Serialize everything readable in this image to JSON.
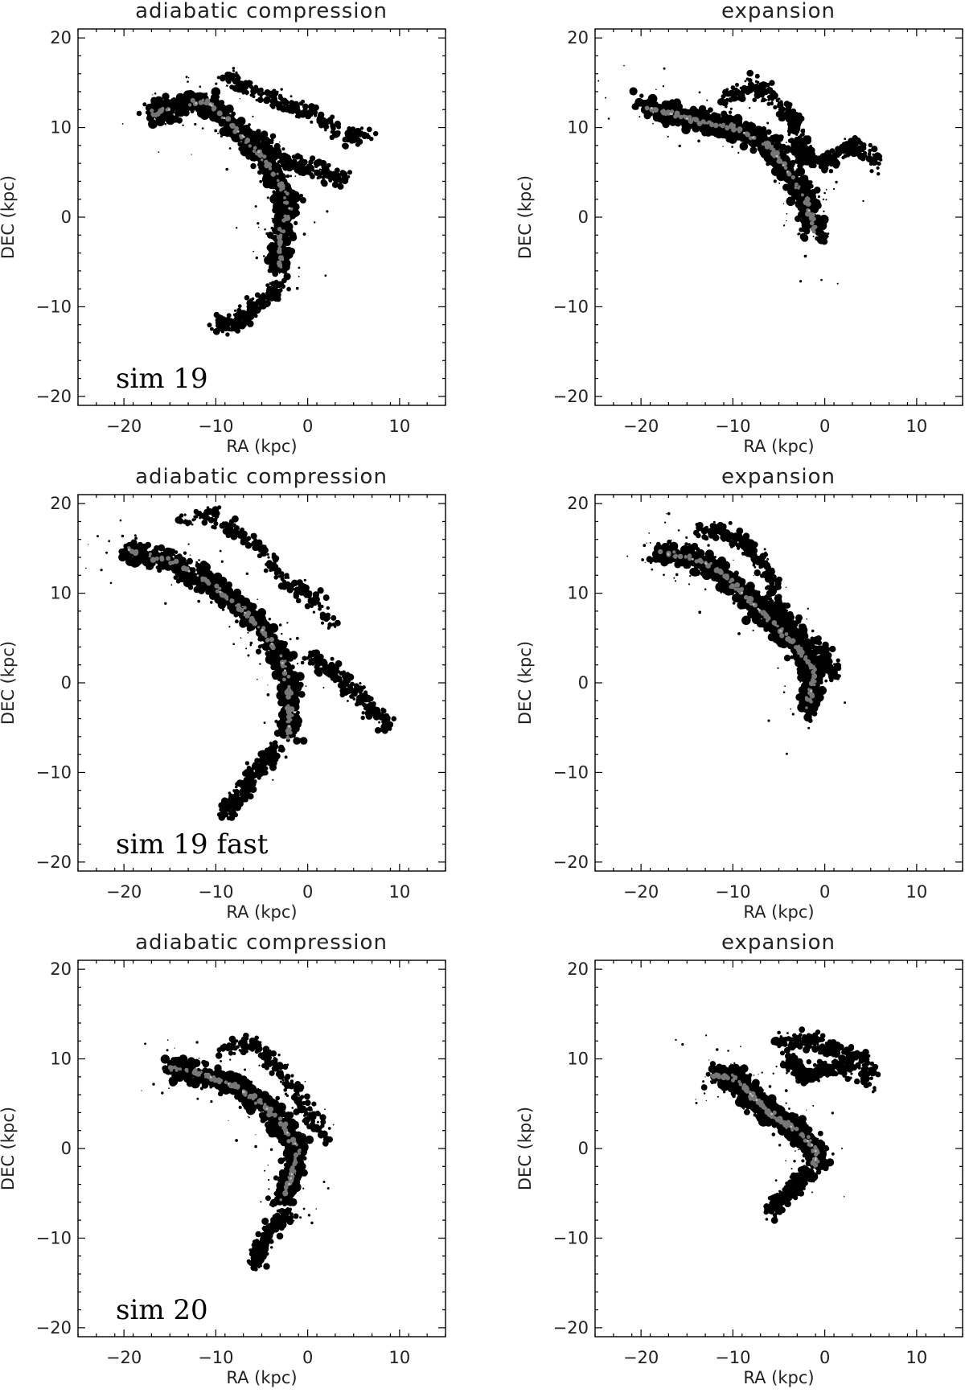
{
  "figure": {
    "colors": {
      "outer": "#000000",
      "core": "#777777",
      "peak": "#bbbbbb"
    },
    "rows": [
      {
        "sim_label": "sim 19",
        "left_title": "adiabatic compression",
        "right_title": "expansion"
      },
      {
        "sim_label": "sim 19 fast",
        "left_title": "adiabatic compression",
        "right_title": "expansion"
      },
      {
        "sim_label": "sim 20",
        "left_title": "adiabatic compression",
        "right_title": "expansion"
      }
    ]
  },
  "chart_data": [
    {
      "type": "heatmap",
      "id": "p00",
      "title": "adiabatic compression",
      "label": "sim 19",
      "xlabel": "RA (kpc)",
      "ylabel": "DEC (kpc)",
      "xlim": [
        -25,
        15
      ],
      "ylim": [
        -21,
        21
      ],
      "xticks": [
        -20,
        -10,
        0,
        10
      ],
      "yticks": [
        -20,
        -10,
        0,
        10,
        20
      ],
      "path": [
        [
          -17,
          11.5
        ],
        [
          -13,
          12.5
        ],
        [
          -11,
          13
        ],
        [
          -8,
          10
        ],
        [
          -5,
          7
        ],
        [
          -3,
          4
        ],
        [
          -2,
          1
        ],
        [
          -3,
          -2
        ],
        [
          -3,
          -6
        ]
      ],
      "branches": [
        [
          [
            -9,
            16
          ],
          [
            -6,
            14
          ],
          [
            -3,
            13
          ],
          [
            1,
            11
          ],
          [
            4,
            9
          ],
          [
            7,
            9
          ]
        ],
        [
          [
            -6,
            9
          ],
          [
            -2,
            6
          ],
          [
            2,
            5
          ],
          [
            4,
            4
          ]
        ],
        [
          [
            -3,
            -8
          ],
          [
            -6,
            -10
          ],
          [
            -8,
            -12
          ],
          [
            -10,
            -12
          ]
        ]
      ]
    },
    {
      "type": "heatmap",
      "id": "p01",
      "title": "expansion",
      "label": "",
      "xlabel": "RA (kpc)",
      "ylabel": "DEC (kpc)",
      "xlim": [
        -25,
        15
      ],
      "ylim": [
        -21,
        21
      ],
      "xticks": [
        -20,
        -10,
        0,
        10
      ],
      "yticks": [
        -20,
        -10,
        0,
        10,
        20
      ],
      "path": [
        [
          -20,
          12.5
        ],
        [
          -15,
          11
        ],
        [
          -10,
          10
        ],
        [
          -6,
          8
        ],
        [
          -4,
          5
        ],
        [
          -2,
          2
        ],
        [
          -1,
          -2
        ]
      ],
      "branches": [
        [
          [
            -11,
            13
          ],
          [
            -8,
            15
          ],
          [
            -5,
            13
          ],
          [
            -3,
            10
          ],
          [
            -2,
            6
          ]
        ],
        [
          [
            -4,
            8
          ],
          [
            0,
            6
          ],
          [
            3,
            8
          ],
          [
            6,
            6
          ]
        ]
      ]
    },
    {
      "type": "heatmap",
      "id": "p10",
      "title": "adiabatic compression",
      "label": "sim 19 fast",
      "xlabel": "RA (kpc)",
      "ylabel": "DEC (kpc)",
      "xlim": [
        -25,
        15
      ],
      "ylim": [
        -21,
        21
      ],
      "xticks": [
        -20,
        -10,
        0,
        10
      ],
      "yticks": [
        -20,
        -10,
        0,
        10,
        20
      ],
      "path": [
        [
          -20,
          15
        ],
        [
          -15,
          13.5
        ],
        [
          -12,
          12
        ],
        [
          -8,
          9
        ],
        [
          -5,
          6
        ],
        [
          -3,
          3
        ],
        [
          -2,
          0
        ],
        [
          -2,
          -6
        ]
      ],
      "branches": [
        [
          [
            -14,
            18
          ],
          [
            -11,
            19
          ],
          [
            -8,
            17
          ],
          [
            -5,
            15
          ],
          [
            -3,
            12
          ],
          [
            1,
            9
          ],
          [
            3,
            6
          ]
        ],
        [
          [
            -3,
            -7
          ],
          [
            -5,
            -9
          ],
          [
            -7,
            -12
          ],
          [
            -9,
            -15
          ]
        ],
        [
          [
            0,
            3
          ],
          [
            3,
            1
          ],
          [
            6,
            -2
          ],
          [
            9,
            -5
          ]
        ]
      ]
    },
    {
      "type": "heatmap",
      "id": "p11",
      "title": "expansion",
      "label": "",
      "xlabel": "RA (kpc)",
      "ylabel": "DEC (kpc)",
      "xlim": [
        -25,
        15
      ],
      "ylim": [
        -21,
        21
      ],
      "xticks": [
        -20,
        -10,
        0,
        10
      ],
      "yticks": [
        -20,
        -10,
        0,
        10,
        20
      ],
      "path": [
        [
          -18,
          14.5
        ],
        [
          -15,
          14
        ],
        [
          -12,
          13
        ],
        [
          -9,
          10
        ],
        [
          -6,
          7
        ],
        [
          -3,
          4
        ],
        [
          -1,
          1
        ],
        [
          -2,
          -3
        ]
      ],
      "branches": [
        [
          [
            -14,
            17
          ],
          [
            -11,
            17
          ],
          [
            -8,
            15
          ],
          [
            -6,
            12
          ],
          [
            -5,
            9
          ]
        ],
        [
          [
            -6,
            9
          ],
          [
            -3,
            6
          ],
          [
            0,
            3
          ],
          [
            1,
            1
          ]
        ]
      ]
    },
    {
      "type": "heatmap",
      "id": "p20",
      "title": "adiabatic compression",
      "label": "sim 20",
      "xlabel": "RA (kpc)",
      "ylabel": "DEC (kpc)",
      "xlim": [
        -25,
        15
      ],
      "ylim": [
        -21,
        21
      ],
      "xticks": [
        -20,
        -10,
        0,
        10
      ],
      "yticks": [
        -20,
        -10,
        0,
        10,
        20
      ],
      "path": [
        [
          -15,
          9
        ],
        [
          -12,
          8.5
        ],
        [
          -8,
          7
        ],
        [
          -5,
          5
        ],
        [
          -3,
          3
        ],
        [
          -1,
          0
        ],
        [
          -2,
          -4
        ],
        [
          -3,
          -6
        ]
      ],
      "branches": [
        [
          [
            -9,
            11
          ],
          [
            -6,
            12
          ],
          [
            -4,
            10
          ],
          [
            -2,
            7
          ],
          [
            0,
            4
          ],
          [
            2,
            1
          ]
        ],
        [
          [
            -2,
            -7
          ],
          [
            -4,
            -9
          ],
          [
            -5,
            -11
          ],
          [
            -6,
            -13
          ]
        ]
      ]
    },
    {
      "type": "heatmap",
      "id": "p21",
      "title": "expansion",
      "label": "",
      "xlabel": "RA (kpc)",
      "ylabel": "DEC (kpc)",
      "xlim": [
        -25,
        15
      ],
      "ylim": [
        -21,
        21
      ],
      "xticks": [
        -20,
        -10,
        0,
        10
      ],
      "yticks": [
        -20,
        -10,
        0,
        10,
        20
      ],
      "path": [
        [
          -12,
          8
        ],
        [
          -10,
          8
        ],
        [
          -8,
          6
        ],
        [
          -6,
          4
        ],
        [
          -3,
          2
        ],
        [
          -1,
          0
        ],
        [
          -1,
          -2
        ]
      ],
      "branches": [
        [
          [
            -5,
            12
          ],
          [
            -2,
            12
          ],
          [
            1,
            11
          ],
          [
            4,
            10
          ],
          [
            5,
            7
          ]
        ],
        [
          [
            -4,
            10
          ],
          [
            -2,
            8
          ],
          [
            0,
            9
          ],
          [
            3,
            9
          ]
        ],
        [
          [
            -2,
            -3
          ],
          [
            -4,
            -5
          ],
          [
            -6,
            -7
          ]
        ]
      ]
    }
  ]
}
